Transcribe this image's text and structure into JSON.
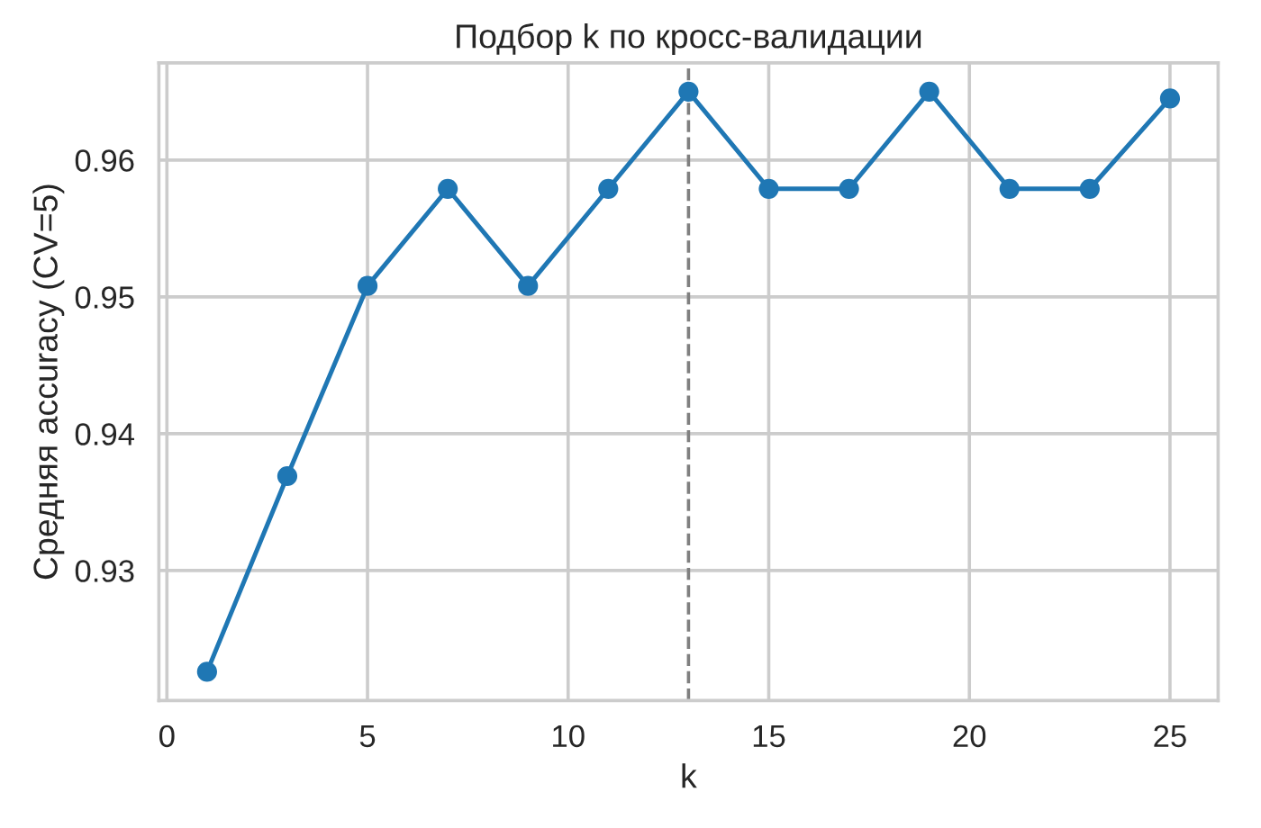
{
  "chart_data": {
    "type": "line",
    "title": "Подбор k по кросс-валидации",
    "xlabel": "k",
    "ylabel": "Средняя accuracy (CV=5)",
    "x": [
      1,
      3,
      5,
      7,
      9,
      11,
      13,
      15,
      17,
      19,
      21,
      23,
      25
    ],
    "series": [
      {
        "color": "#1f77b4",
        "values": [
          0.9226,
          0.9369,
          0.9508,
          0.9579,
          0.9508,
          0.9579,
          0.965,
          0.9579,
          0.9579,
          0.965,
          0.9579,
          0.9579,
          0.9645
        ]
      }
    ],
    "xlim": [
      -0.2,
      26.2
    ],
    "xticks": [
      0,
      5,
      10,
      15,
      20,
      25
    ],
    "ylim": [
      0.9205,
      0.9671
    ],
    "yticks": [
      0.93,
      0.94,
      0.95,
      0.96
    ],
    "ref_lines": [
      {
        "axis": "x",
        "value": 13,
        "color": "#808080",
        "line_style": "dashed"
      }
    ],
    "grid": true,
    "marker": "circle",
    "line_style": "solid"
  }
}
